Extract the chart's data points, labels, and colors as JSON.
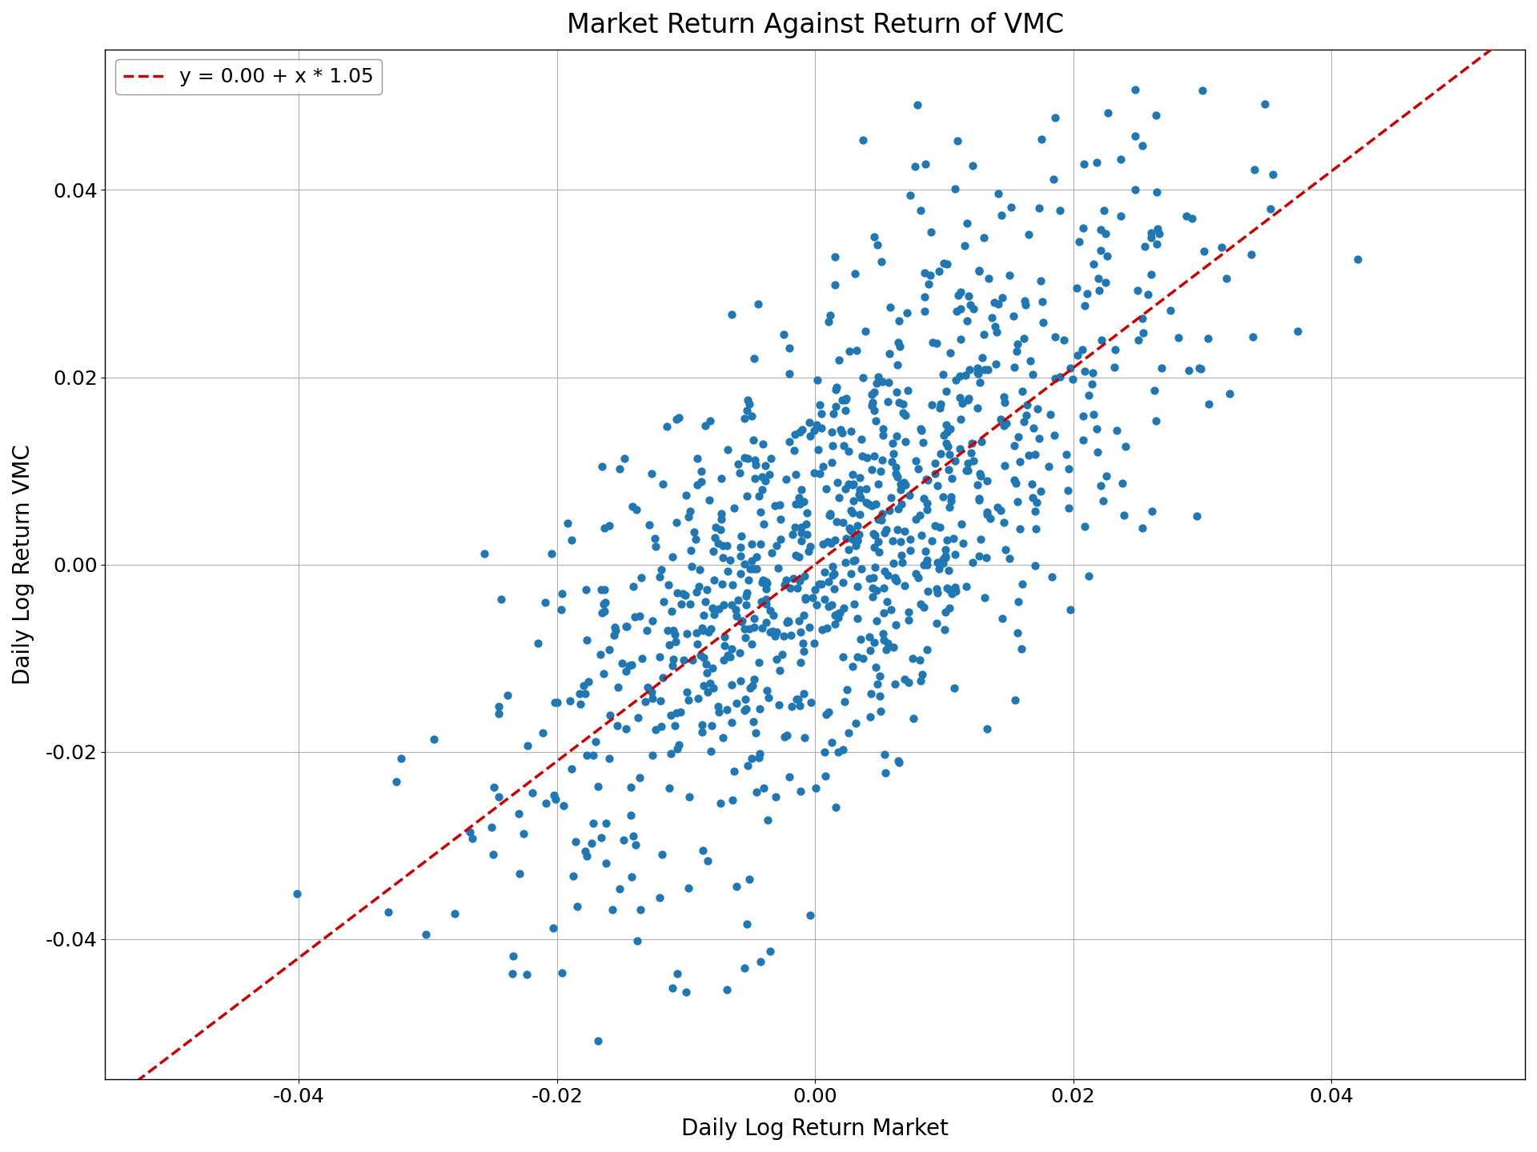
{
  "title": "Market Return Against Return of VMC",
  "xlabel": "Daily Log Return Market",
  "ylabel": "Daily Log Return VMC",
  "legend_label": "y = 0.00 + x * 1.05",
  "intercept": 0.0,
  "slope": 1.05,
  "scatter_color": "#1f77b4",
  "line_color": "#cc0000",
  "line_style": "--",
  "xlim": [
    -0.055,
    0.055
  ],
  "ylim": [
    -0.055,
    0.055
  ],
  "xticks": [
    -0.04,
    -0.02,
    0.0,
    0.02,
    0.04
  ],
  "yticks": [
    -0.04,
    -0.02,
    0.0,
    0.02,
    0.04
  ],
  "marker_size": 55,
  "seed": 42,
  "n_points": 1000,
  "market_std": 0.013,
  "vmc_noise_std": 0.013,
  "figsize": [
    19.2,
    14.4
  ],
  "dpi": 100,
  "title_fontsize": 24,
  "label_fontsize": 20,
  "tick_fontsize": 18,
  "legend_fontsize": 18
}
